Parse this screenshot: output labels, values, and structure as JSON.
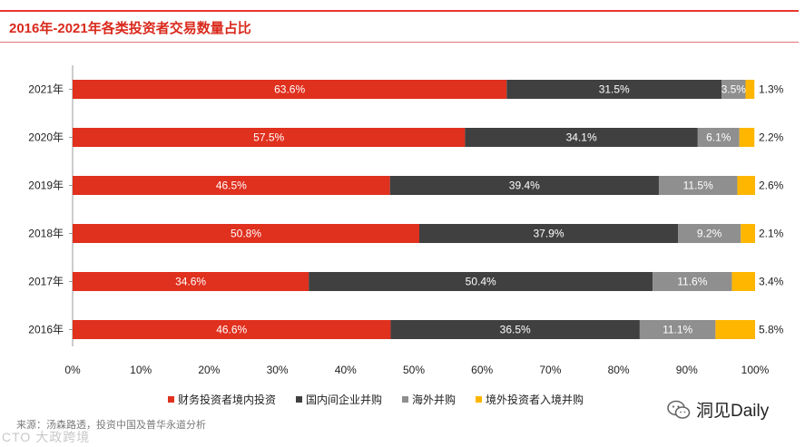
{
  "header": {
    "title": "2016年-2021年各类投资者交易数量占比"
  },
  "chart_data": {
    "type": "bar",
    "orientation": "horizontal",
    "stacked": true,
    "title": "2016年-2021年各类投资者交易数量占比",
    "categories": [
      "2021年",
      "2020年",
      "2019年",
      "2018年",
      "2017年",
      "2016年"
    ],
    "series": [
      {
        "name": "财务投资者境内投资",
        "color": "#e0301e",
        "label_color": "#ffffff",
        "values": [
          63.6,
          57.5,
          46.5,
          50.8,
          34.6,
          46.6
        ]
      },
      {
        "name": "国内间企业并购",
        "color": "#404040",
        "label_color": "#ffffff",
        "values": [
          31.5,
          34.1,
          39.4,
          37.9,
          50.4,
          36.5
        ]
      },
      {
        "name": "海外并购",
        "color": "#8f8f8f",
        "label_color": "#ffffff",
        "values": [
          3.5,
          6.1,
          11.5,
          9.2,
          11.6,
          11.1
        ]
      },
      {
        "name": "境外投资者入境并购",
        "color": "#ffb600",
        "label_color": "#222222",
        "values": [
          1.3,
          2.2,
          2.6,
          2.1,
          3.4,
          5.8
        ]
      }
    ],
    "xlim": [
      0,
      100
    ],
    "xticks": [
      "0%",
      "10%",
      "20%",
      "30%",
      "40%",
      "50%",
      "60%",
      "70%",
      "80%",
      "90%",
      "100%"
    ],
    "legend_position": "bottom",
    "grid": false
  },
  "source": {
    "text": "来源：汤森路透，投资中国及普华永道分析"
  },
  "watermark": {
    "left_text": "CTO 大政跨境",
    "brand": "洞见Daily"
  }
}
